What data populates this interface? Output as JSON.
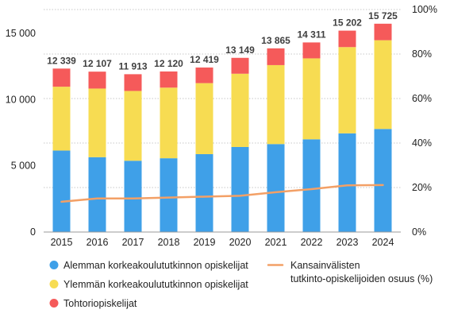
{
  "chart_data": {
    "type": "bar",
    "stacked": true,
    "categories": [
      "2015",
      "2016",
      "2017",
      "2018",
      "2019",
      "2020",
      "2021",
      "2022",
      "2023",
      "2024"
    ],
    "series": [
      {
        "name": "Alemman korkeakoulututkinnon opiskelijat",
        "axis": "left",
        "color": "#3fa0e8",
        "values": [
          6150,
          5650,
          5380,
          5570,
          5880,
          6420,
          6640,
          7000,
          7450,
          7780
        ]
      },
      {
        "name": "Ylemmän korkeakoulututkinnon opiskelijat",
        "axis": "left",
        "color": "#f7dc52",
        "values": [
          4820,
          5180,
          5270,
          5330,
          5360,
          5530,
          5960,
          6110,
          6510,
          6700
        ]
      },
      {
        "name": "Tohtoriopiskelijat",
        "axis": "left",
        "color": "#f55a5a",
        "values": [
          1369,
          1277,
          1263,
          1220,
          1179,
          1199,
          1265,
          1201,
          1242,
          1245
        ]
      }
    ],
    "line_series": {
      "name": "Kansainvälisten tutkinto-opiskelijoiden osuus (%)",
      "axis": "right",
      "color": "#f3a066",
      "values": [
        13.6,
        15.1,
        15.1,
        15.5,
        15.9,
        16.3,
        17.9,
        19.3,
        21.0,
        21.1
      ]
    },
    "totals": [
      "12 339",
      "12 107",
      "11 913",
      "12 120",
      "12 419",
      "13 149",
      "13 865",
      "14 311",
      "15 202",
      "15 725"
    ],
    "left_axis": {
      "min": 0,
      "max": 16795,
      "ticks": [
        0,
        5000,
        10000,
        15000
      ],
      "tick_labels": [
        "0",
        "5 000",
        "10 000",
        "15 000"
      ]
    },
    "right_axis": {
      "min": 0,
      "max": 100,
      "ticks": [
        0,
        20,
        40,
        60,
        80,
        100
      ],
      "tick_labels": [
        "0%",
        "20%",
        "40%",
        "60%",
        "80%",
        "100%"
      ]
    },
    "grid": true,
    "legend_position": "bottom"
  }
}
